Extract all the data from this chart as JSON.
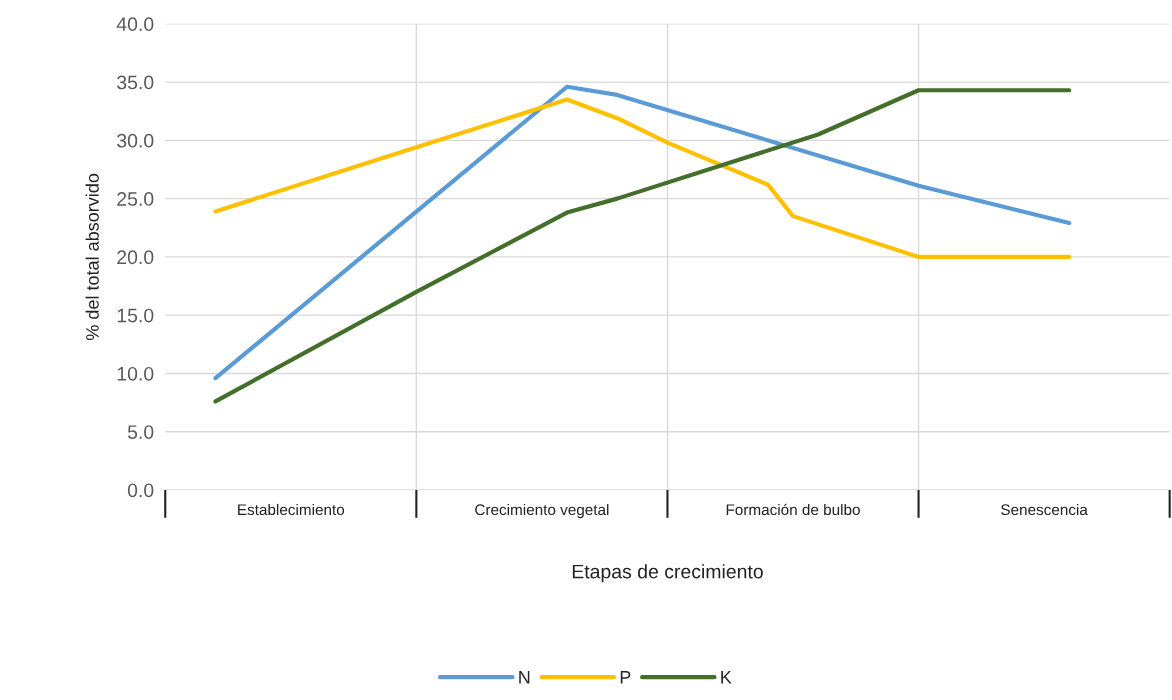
{
  "chart_data": {
    "type": "line",
    "xlabel": "Etapas de crecimiento",
    "ylabel": "% del total absorvido",
    "categories": [
      null,
      null,
      null,
      null,
      null,
      "Establecimiento",
      null,
      null,
      null,
      null,
      null,
      null,
      null,
      null,
      null,
      "Crecimiento vegetal",
      null,
      null,
      null,
      null,
      null,
      null,
      null,
      null,
      null,
      "Formación de bulbo",
      null,
      null,
      null,
      null,
      null,
      null,
      null,
      null,
      null,
      "Senescencia",
      null,
      null,
      null,
      null,
      null
    ],
    "ylim": [
      0,
      40
    ],
    "yticks": [
      {
        "value": 0,
        "label": "0.0"
      },
      {
        "value": 5,
        "label": "5.0"
      },
      {
        "value": 10,
        "label": "10.0"
      },
      {
        "value": 15,
        "label": "15.0"
      },
      {
        "value": 20,
        "label": "20.0"
      },
      {
        "value": 25,
        "label": "25.0"
      },
      {
        "value": 30,
        "label": "30.0"
      },
      {
        "value": 35,
        "label": "35.0"
      },
      {
        "value": 40,
        "label": "40.0"
      }
    ],
    "grid": true,
    "legend": "bottom",
    "marker": "none",
    "line_style": "solid",
    "series": [
      {
        "name": "N",
        "color": "#5b9bd5",
        "values": [
          null,
          null,
          9.6,
          null,
          null,
          null,
          null,
          null,
          null,
          null,
          null,
          null,
          null,
          null,
          null,
          null,
          34.6,
          null,
          33.9,
          null,
          null,
          null,
          null,
          null,
          null,
          null,
          null,
          null,
          null,
          null,
          26.1,
          null,
          null,
          null,
          null,
          null,
          22.9,
          null,
          null,
          null,
          null
        ]
      },
      {
        "name": "P",
        "color": "#ffc000",
        "values": [
          null,
          null,
          23.9,
          null,
          null,
          null,
          null,
          null,
          null,
          null,
          29.4,
          null,
          null,
          null,
          null,
          null,
          33.5,
          null,
          31.9,
          null,
          29.8,
          null,
          null,
          null,
          26.2,
          23.5,
          null,
          null,
          null,
          null,
          20.0,
          null,
          null,
          null,
          null,
          null,
          20.0,
          null,
          null,
          null,
          null
        ]
      },
      {
        "name": "K",
        "color": "#436f2b",
        "values": [
          null,
          null,
          7.6,
          null,
          null,
          null,
          null,
          null,
          null,
          null,
          17.0,
          null,
          null,
          null,
          null,
          null,
          23.8,
          null,
          25.0,
          null,
          null,
          null,
          null,
          null,
          null,
          null,
          30.5,
          null,
          null,
          null,
          34.3,
          null,
          null,
          null,
          null,
          null,
          34.3,
          null,
          null,
          null,
          null
        ]
      }
    ]
  }
}
